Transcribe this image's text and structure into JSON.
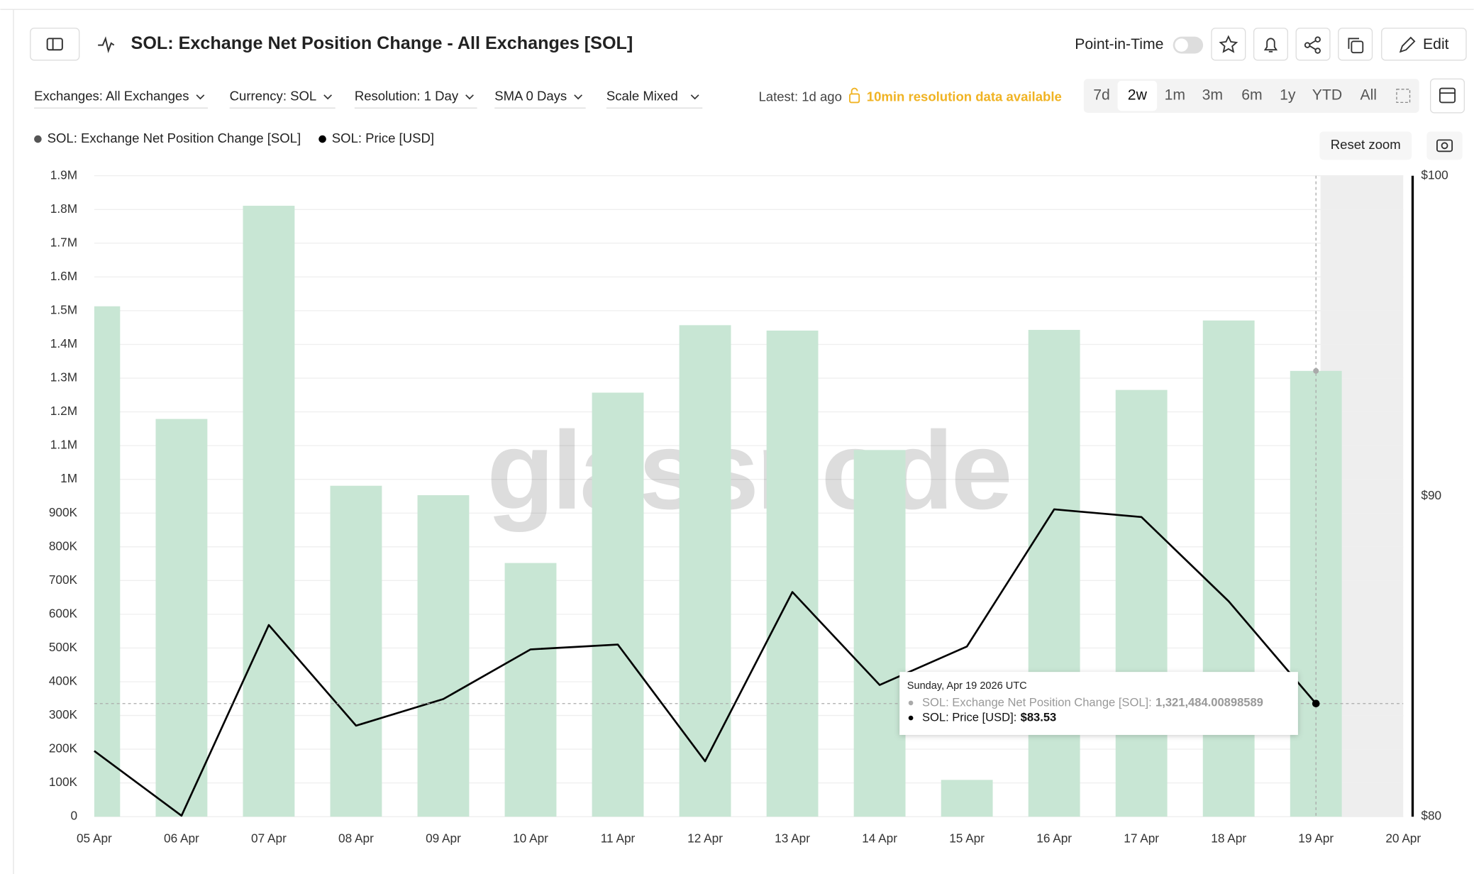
{
  "header": {
    "title": "SOL: Exchange Net Position Change - All Exchanges [SOL]",
    "point_in_time": "Point-in-Time",
    "edit": "Edit"
  },
  "filters": [
    "Exchanges: All Exchanges",
    "Currency: SOL",
    "Resolution: 1 Day",
    "SMA 0 Days",
    "Scale Mixed"
  ],
  "status": {
    "latest": "Latest: 1d ago",
    "notice": "10min resolution data available"
  },
  "ranges": [
    "7d",
    "2w",
    "1m",
    "3m",
    "6m",
    "1y",
    "YTD",
    "All"
  ],
  "active_range_index": 1,
  "reset_zoom": "Reset zoom",
  "watermark": "glassnode",
  "tooltip": {
    "date": "Sunday, Apr 19 2026 UTC",
    "items": [
      {
        "text": "SOL: Exchange Net Position Change [SOL]:",
        "value": "1,321,484.00898589"
      },
      {
        "text": "SOL: Price [USD]:",
        "value": "$83.53"
      }
    ]
  },
  "chart_data": {
    "type": "bar",
    "categories": [
      "05 Apr",
      "06 Apr",
      "07 Apr",
      "08 Apr",
      "09 Apr",
      "10 Apr",
      "11 Apr",
      "12 Apr",
      "13 Apr",
      "14 Apr",
      "15 Apr",
      "16 Apr",
      "17 Apr",
      "18 Apr",
      "19 Apr",
      "20 Apr"
    ],
    "series": [
      {
        "name": "SOL: Exchange Net Position Change [SOL]",
        "color": "#c8e6d4",
        "values": [
          1513000,
          1179000,
          1811000,
          981000,
          953000,
          752000,
          1257000,
          1457000,
          1441000,
          1087000,
          109000,
          1443000,
          1265000,
          1471000,
          1321484.00898589,
          null
        ]
      },
      {
        "name": "SOL: Price [USD]",
        "type": "line",
        "axis": "y2",
        "color": "#000000",
        "values": [
          82.05,
          80.03,
          85.98,
          82.84,
          83.67,
          85.22,
          85.37,
          81.73,
          87.01,
          84.11,
          85.31,
          89.59,
          89.35,
          86.72,
          83.53,
          null
        ]
      }
    ],
    "ylim": [
      0,
      1900000
    ],
    "yticks": [
      0,
      {
        "value": 100000,
        "label": "100K"
      },
      {
        "value": 200000,
        "label": "200K"
      },
      {
        "value": 300000,
        "label": "300K"
      },
      {
        "value": 400000,
        "label": "400K"
      },
      {
        "value": 500000,
        "label": "500K"
      },
      {
        "value": 600000,
        "label": "600K"
      },
      {
        "value": 700000,
        "label": "700K"
      },
      {
        "value": 800000,
        "label": "800K"
      },
      {
        "value": 900000,
        "label": "900K"
      },
      {
        "value": 1000000,
        "label": "1M"
      },
      {
        "value": 1100000,
        "label": "1.1M"
      },
      {
        "value": 1200000,
        "label": "1.2M"
      },
      {
        "value": 1300000,
        "label": "1.3M"
      },
      {
        "value": 1400000,
        "label": "1.4M"
      },
      {
        "value": 1500000,
        "label": "1.5M"
      },
      {
        "value": 1600000,
        "label": "1.6M"
      },
      {
        "value": 1700000,
        "label": "1.7M"
      },
      {
        "value": 1800000,
        "label": "1.8M"
      },
      {
        "value": 1900000,
        "label": "1.9M"
      }
    ],
    "y2lim": [
      80,
      100
    ],
    "y2ticks": [
      {
        "value": 100,
        "label": "$100"
      },
      {
        "value": 90,
        "label": "$90"
      },
      {
        "value": 80,
        "label": "$80"
      }
    ],
    "grid": true
  }
}
